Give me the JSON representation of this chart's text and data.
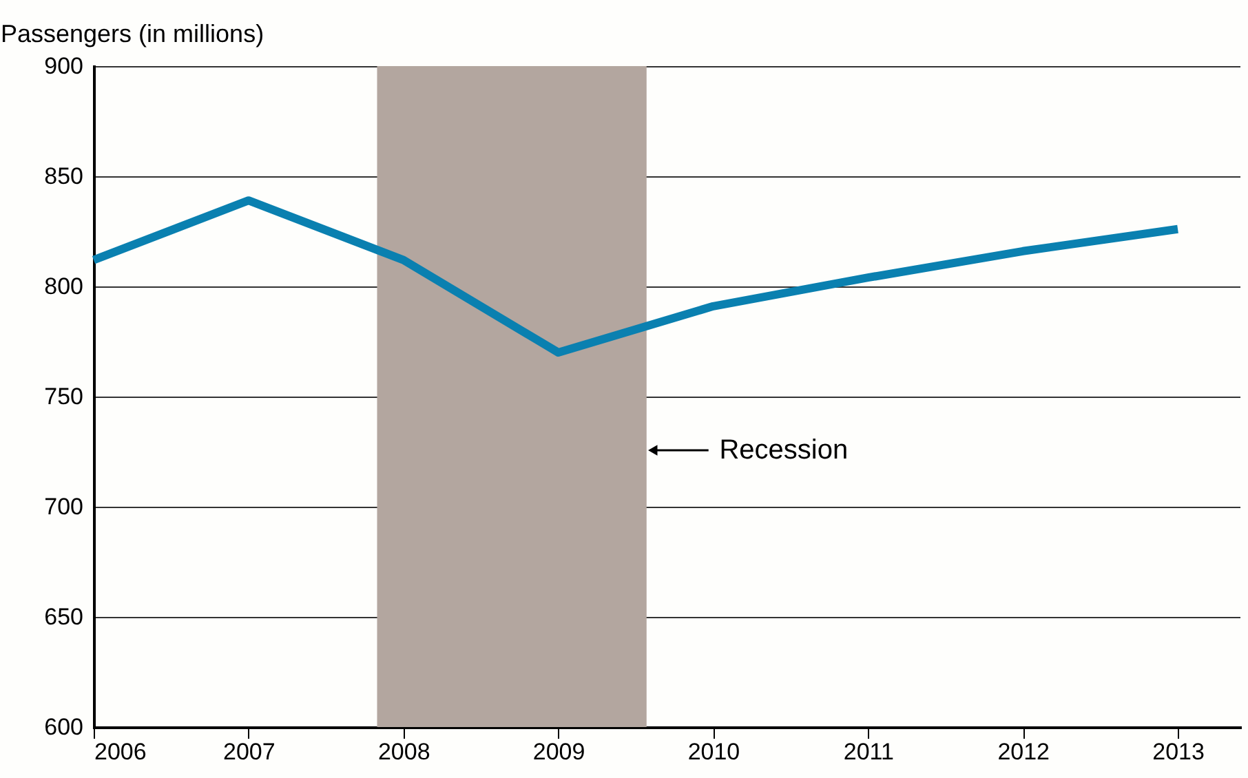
{
  "chart_data": {
    "type": "line",
    "ylabel": "Passengers (in millions)",
    "x": [
      2006,
      2007,
      2008,
      2009,
      2010,
      2011,
      2012,
      2013
    ],
    "series": [
      {
        "color": "#0a80b0",
        "values": [
          812,
          839,
          812,
          770,
          791,
          804,
          816,
          826
        ]
      }
    ],
    "xlim": [
      2006,
      2013.4
    ],
    "xticks": [
      2006,
      2007,
      2008,
      2009,
      2010,
      2011,
      2012,
      2013
    ],
    "ylim": [
      600,
      900
    ],
    "yticks": [
      600,
      650,
      700,
      750,
      800,
      850,
      900
    ],
    "grid": "y",
    "marker": "none",
    "line_style": "solid",
    "bands": [
      {
        "axis": "x",
        "from": 2007.83,
        "to": 2009.57,
        "label": "Recession",
        "color": "#b3a69f"
      }
    ]
  }
}
